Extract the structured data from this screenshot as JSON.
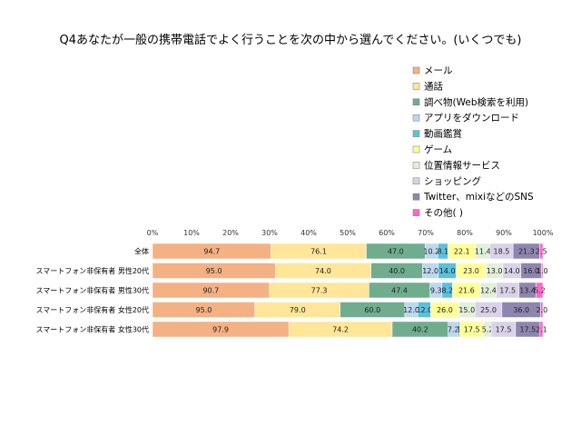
{
  "chart_data": {
    "type": "bar",
    "orientation": "horizontal",
    "stacked": "percent",
    "title": "Q4あなたが一般の携帯電話でよく行うことを次の中から選んでください。(いくつでも)",
    "xlabel": "",
    "ylabel": "",
    "xlim": [
      0,
      100
    ],
    "x_tick_labels": [
      "0%",
      "10%",
      "20%",
      "30%",
      "40%",
      "50%",
      "60%",
      "70%",
      "80%",
      "90%",
      "100%"
    ],
    "grid": false,
    "legend_position": "right",
    "categories": [
      "全体",
      "スマートフォン非保有者 男性20代",
      "スマートフォン非保有者 男性30代",
      "スマートフォン非保有者 女性20代",
      "スマートフォン非保有者 女性30代"
    ],
    "series": [
      {
        "name": "メール",
        "color": "#f4b183",
        "values": [
          94.7,
          95.0,
          90.7,
          95.0,
          97.9
        ],
        "labels": [
          "94.7",
          "95.0",
          "90.7",
          "95.0",
          "97.9"
        ]
      },
      {
        "name": "通話",
        "color": "#ffe699",
        "values": [
          76.1,
          74.0,
          77.3,
          79.0,
          74.2
        ],
        "labels": [
          "76.1",
          "74.0",
          "77.3",
          "79.0",
          "74.2"
        ]
      },
      {
        "name": "調べ物(Web検索を利用)",
        "color": "#70ad8f",
        "values": [
          47.0,
          40.0,
          47.4,
          60.0,
          40.2
        ],
        "labels": [
          "47.0",
          "40.0",
          "47.4",
          "60.0",
          "40.2"
        ]
      },
      {
        "name": "アプリをダウンロード",
        "color": "#bdd7ee",
        "values": [
          10.2,
          12.0,
          9.3,
          12.0,
          7.2
        ],
        "labels": [
          "10.2",
          "12.0",
          "9.3",
          "12.0",
          "7.2"
        ]
      },
      {
        "name": "動画鑑賞",
        "color": "#5bc0de",
        "values": [
          8.1,
          14.0,
          8.2,
          12.0,
          1.0
        ],
        "labels": [
          "8.1",
          "14.0",
          "8.2",
          "12.0",
          "1"
        ]
      },
      {
        "name": "ゲーム",
        "color": "#ffff99",
        "values": [
          22.1,
          23.0,
          21.6,
          26.0,
          17.5
        ],
        "labels": [
          "22.1",
          "23.0",
          "21.6",
          "26.0",
          "17.5"
        ]
      },
      {
        "name": "位置情報サービス",
        "color": "#e2f0d9",
        "values": [
          11.4,
          13.0,
          12.4,
          15.0,
          5.2
        ],
        "labels": [
          "11.4",
          "13.0",
          "12.4",
          "15.0",
          "5.2"
        ]
      },
      {
        "name": "ショッピング",
        "color": "#d9d2e9",
        "values": [
          18.5,
          14.0,
          17.5,
          25.0,
          17.5
        ],
        "labels": [
          "18.5",
          "14.0",
          "17.5",
          "25.0",
          "17.5"
        ]
      },
      {
        "name": "Twitter、mixiなどのSNS",
        "color": "#8e86ae",
        "values": [
          21.3,
          16.0,
          13.4,
          36.0,
          17.5
        ],
        "labels": [
          "21.3",
          "16.0",
          "13.4",
          "36.0",
          "17.5"
        ]
      },
      {
        "name": "その他(   )",
        "color": "#ff66cc",
        "values": [
          2.5,
          1.0,
          5.2,
          2.0,
          2.1
        ],
        "labels": [
          "2.5",
          "1.0",
          "5.2",
          "2.0",
          "2.1"
        ]
      }
    ]
  }
}
